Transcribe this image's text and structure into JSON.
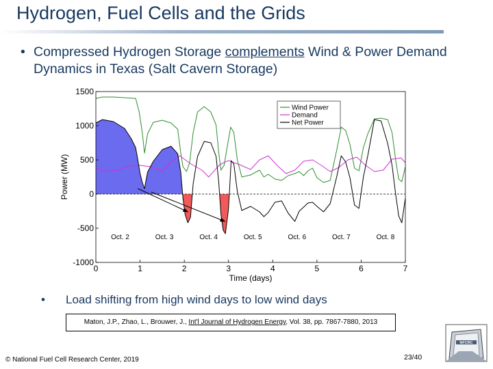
{
  "header": {
    "title": "Hydrogen, Fuel Cells and the Grids"
  },
  "bullet1": {
    "symbol": "•",
    "before": "Compressed Hydrogen Storage ",
    "underlined": "complements",
    "after": " Wind & Power Demand Dynamics in Texas (Salt Cavern Storage)"
  },
  "chart_data": {
    "type": "line",
    "xlabel": "Time (days)",
    "ylabel": "Power (MW)",
    "xlim": [
      0,
      7
    ],
    "ylim": [
      -1000,
      1500
    ],
    "xticks": [
      "0",
      "1",
      "2",
      "3",
      "4",
      "5",
      "6",
      "7"
    ],
    "yticks": [
      "-1000",
      "-500",
      "0",
      "500",
      "1000",
      "1500"
    ],
    "date_labels": [
      {
        "x": 0.55,
        "label": "Oct. 2"
      },
      {
        "x": 1.55,
        "label": "Oct. 3"
      },
      {
        "x": 2.55,
        "label": "Oct. 4"
      },
      {
        "x": 3.55,
        "label": "Oct. 5"
      },
      {
        "x": 4.55,
        "label": "Oct. 6"
      },
      {
        "x": 5.55,
        "label": "Oct. 7"
      },
      {
        "x": 6.55,
        "label": "Oct. 8"
      }
    ],
    "legend": [
      "Wind Power",
      "Demand",
      "Net Power"
    ],
    "legend_position": "top-right",
    "colors": {
      "wind": "#2e8b2e",
      "demand": "#cc33cc",
      "net": "#000000",
      "surplus_fill": "#6b6bf0",
      "deficit_fill": "#f05a5a"
    },
    "series": [
      {
        "name": "Wind Power",
        "points": [
          [
            0,
            1400
          ],
          [
            0.15,
            1420
          ],
          [
            0.4,
            1420
          ],
          [
            0.65,
            1410
          ],
          [
            0.9,
            1400
          ],
          [
            0.98,
            1200
          ],
          [
            1.05,
            900
          ],
          [
            1.1,
            600
          ],
          [
            1.17,
            880
          ],
          [
            1.3,
            1050
          ],
          [
            1.5,
            1080
          ],
          [
            1.7,
            1040
          ],
          [
            1.85,
            950
          ],
          [
            1.92,
            600
          ],
          [
            1.97,
            400
          ],
          [
            2.05,
            330
          ],
          [
            2.12,
            460
          ],
          [
            2.2,
            900
          ],
          [
            2.3,
            1200
          ],
          [
            2.45,
            1280
          ],
          [
            2.6,
            1200
          ],
          [
            2.72,
            1010
          ],
          [
            2.78,
            600
          ],
          [
            2.83,
            350
          ],
          [
            2.9,
            420
          ],
          [
            2.96,
            650
          ],
          [
            3.05,
            980
          ],
          [
            3.12,
            900
          ],
          [
            3.2,
            500
          ],
          [
            3.3,
            250
          ],
          [
            3.5,
            280
          ],
          [
            3.7,
            350
          ],
          [
            3.8,
            250
          ],
          [
            3.9,
            290
          ],
          [
            4.05,
            220
          ],
          [
            4.2,
            200
          ],
          [
            4.35,
            270
          ],
          [
            4.5,
            300
          ],
          [
            4.6,
            330
          ],
          [
            4.7,
            270
          ],
          [
            4.8,
            340
          ],
          [
            4.9,
            380
          ],
          [
            5.0,
            240
          ],
          [
            5.15,
            170
          ],
          [
            5.3,
            200
          ],
          [
            5.45,
            650
          ],
          [
            5.55,
            980
          ],
          [
            5.65,
            930
          ],
          [
            5.75,
            720
          ],
          [
            5.85,
            380
          ],
          [
            5.95,
            340
          ],
          [
            6.05,
            680
          ],
          [
            6.15,
            880
          ],
          [
            6.3,
            1100
          ],
          [
            6.45,
            1110
          ],
          [
            6.6,
            1090
          ],
          [
            6.7,
            900
          ],
          [
            6.78,
            500
          ],
          [
            6.85,
            220
          ],
          [
            6.92,
            180
          ],
          [
            7.0,
            400
          ]
        ]
      },
      {
        "name": "Demand",
        "points": [
          [
            0,
            380
          ],
          [
            0.25,
            330
          ],
          [
            0.5,
            350
          ],
          [
            0.75,
            410
          ],
          [
            1.0,
            420
          ],
          [
            1.25,
            400
          ],
          [
            1.5,
            330
          ],
          [
            1.7,
            470
          ],
          [
            1.9,
            560
          ],
          [
            2.15,
            440
          ],
          [
            2.4,
            350
          ],
          [
            2.55,
            250
          ],
          [
            2.8,
            430
          ],
          [
            3.0,
            490
          ],
          [
            3.25,
            430
          ],
          [
            3.5,
            360
          ],
          [
            3.7,
            500
          ],
          [
            3.9,
            560
          ],
          [
            4.1,
            420
          ],
          [
            4.3,
            300
          ],
          [
            4.5,
            350
          ],
          [
            4.7,
            480
          ],
          [
            4.9,
            500
          ],
          [
            5.1,
            420
          ],
          [
            5.3,
            330
          ],
          [
            5.5,
            390
          ],
          [
            5.7,
            500
          ],
          [
            5.9,
            540
          ],
          [
            6.1,
            420
          ],
          [
            6.3,
            330
          ],
          [
            6.5,
            350
          ],
          [
            6.7,
            510
          ],
          [
            6.9,
            530
          ],
          [
            7.0,
            460
          ]
        ]
      },
      {
        "name": "Net Power",
        "points": [
          [
            0,
            1040
          ],
          [
            0.15,
            1090
          ],
          [
            0.4,
            1060
          ],
          [
            0.65,
            960
          ],
          [
            0.8,
            810
          ],
          [
            0.9,
            680
          ],
          [
            0.95,
            500
          ],
          [
            1.0,
            300
          ],
          [
            1.05,
            170
          ],
          [
            1.1,
            80
          ],
          [
            1.17,
            320
          ],
          [
            1.3,
            480
          ],
          [
            1.5,
            650
          ],
          [
            1.7,
            700
          ],
          [
            1.85,
            590
          ],
          [
            1.92,
            320
          ],
          [
            1.97,
            -60
          ],
          [
            2.02,
            -300
          ],
          [
            2.08,
            -420
          ],
          [
            2.14,
            -340
          ],
          [
            2.2,
            150
          ],
          [
            2.3,
            550
          ],
          [
            2.45,
            770
          ],
          [
            2.6,
            750
          ],
          [
            2.72,
            550
          ],
          [
            2.78,
            170
          ],
          [
            2.83,
            -300
          ],
          [
            2.88,
            -530
          ],
          [
            2.93,
            -580
          ],
          [
            3.0,
            -220
          ],
          [
            3.06,
            490
          ],
          [
            3.12,
            440
          ],
          [
            3.2,
            40
          ],
          [
            3.3,
            -240
          ],
          [
            3.5,
            -180
          ],
          [
            3.7,
            -260
          ],
          [
            3.8,
            -330
          ],
          [
            3.9,
            -270
          ],
          [
            4.05,
            -120
          ],
          [
            4.2,
            -100
          ],
          [
            4.35,
            -280
          ],
          [
            4.5,
            -400
          ],
          [
            4.6,
            -250
          ],
          [
            4.7,
            -190
          ],
          [
            4.8,
            -130
          ],
          [
            4.9,
            -120
          ],
          [
            5.0,
            -180
          ],
          [
            5.15,
            -260
          ],
          [
            5.3,
            -140
          ],
          [
            5.45,
            260
          ],
          [
            5.55,
            560
          ],
          [
            5.65,
            470
          ],
          [
            5.75,
            230
          ],
          [
            5.85,
            -160
          ],
          [
            5.95,
            -210
          ],
          [
            6.05,
            250
          ],
          [
            6.15,
            560
          ],
          [
            6.3,
            1090
          ],
          [
            6.45,
            1070
          ],
          [
            6.6,
            740
          ],
          [
            6.7,
            420
          ],
          [
            6.78,
            0
          ],
          [
            6.85,
            -320
          ],
          [
            6.92,
            -420
          ],
          [
            7.0,
            -60
          ]
        ]
      }
    ],
    "surplus_region": {
      "from": 0,
      "to": 2.0
    },
    "deficit_regions": [
      {
        "from": 1.9,
        "to": 2.2
      },
      {
        "from": 2.75,
        "to": 3.05
      }
    ],
    "arrows": [
      {
        "from": [
          0.95,
          80
        ],
        "to": [
          2.08,
          -260
        ]
      },
      {
        "from": [
          1.25,
          30
        ],
        "to": [
          2.92,
          -400
        ]
      }
    ]
  },
  "bullet2": {
    "symbol": "•",
    "text": "Load shifting from high wind days to low wind days"
  },
  "citation": {
    "before": "Maton, J.P., Zhao, L., Brouwer, J., ",
    "journal": "Int'l Journal of Hydrogen Energy",
    "after": ", Vol. 38, pp. 7867-7880, 2013"
  },
  "footer": {
    "copyright": "© National Fuel Cell Research Center, 2019",
    "page": "23/40"
  },
  "logo": {
    "text": "NFCRC"
  }
}
